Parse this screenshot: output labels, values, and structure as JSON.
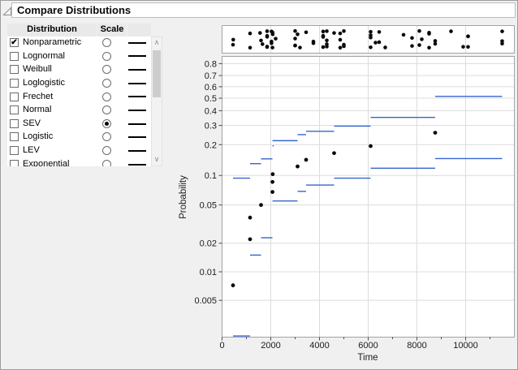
{
  "window": {
    "title": "Compare Distributions"
  },
  "distribution_table": {
    "columns": [
      "Distribution",
      "Scale",
      ""
    ],
    "rows": [
      {
        "label": "Nonparametric",
        "checked": true,
        "scale_selected": false
      },
      {
        "label": "Lognormal",
        "checked": false,
        "scale_selected": false
      },
      {
        "label": "Weibull",
        "checked": false,
        "scale_selected": false
      },
      {
        "label": "Loglogistic",
        "checked": false,
        "scale_selected": false
      },
      {
        "label": "Frechet",
        "checked": false,
        "scale_selected": false
      },
      {
        "label": "Normal",
        "checked": false,
        "scale_selected": false
      },
      {
        "label": "SEV",
        "checked": false,
        "scale_selected": true
      },
      {
        "label": "Logistic",
        "checked": false,
        "scale_selected": false
      },
      {
        "label": "LEV",
        "checked": false,
        "scale_selected": false
      },
      {
        "label": "Exponential",
        "checked": false,
        "scale_selected": false
      }
    ]
  },
  "chart_data": {
    "type": "scatter",
    "title": "",
    "xlabel": "Time",
    "ylabel": "Probability",
    "x_axis": {
      "min": 0,
      "max": 12000,
      "major_ticks": [
        0,
        2000,
        4000,
        6000,
        8000,
        10000
      ],
      "minor_ticks": [
        1000,
        3000,
        5000,
        7000,
        9000,
        11000
      ]
    },
    "y_axis": {
      "scale": "sev-probability",
      "ticks": [
        0.8,
        0.7,
        0.6,
        0.5,
        0.4,
        0.3,
        0.2,
        0.1,
        0.05,
        0.02,
        0.01,
        0.005
      ],
      "min": 0.002,
      "max": 0.86
    },
    "grid": true,
    "legend": "none",
    "colors": {
      "points": "#0a0a0a",
      "nonparametric_ci": "#3565cf"
    },
    "km_midpoints": [
      [
        450,
        0.0072
      ],
      [
        1150,
        0.022
      ],
      [
        1150,
        0.037
      ],
      [
        1600,
        0.05
      ],
      [
        2070,
        0.068
      ],
      [
        2070,
        0.086
      ],
      [
        2080,
        0.103
      ],
      [
        3100,
        0.123
      ],
      [
        3450,
        0.143
      ],
      [
        4600,
        0.166
      ],
      [
        6100,
        0.194
      ],
      [
        8750,
        0.258
      ]
    ],
    "ci_lower_steps": [
      [
        450,
        1150,
        0.0021
      ],
      [
        1150,
        1600,
        0.015
      ],
      [
        1600,
        2070,
        0.0228
      ],
      [
        2070,
        3100,
        0.055
      ],
      [
        3100,
        3450,
        0.069
      ],
      [
        3450,
        4600,
        0.08
      ],
      [
        4600,
        6100,
        0.094
      ],
      [
        6100,
        8750,
        0.118
      ],
      [
        8750,
        11500,
        0.147
      ]
    ],
    "ci_upper_steps": [
      [
        450,
        1150,
        0.094
      ],
      [
        1150,
        1600,
        0.131
      ],
      [
        1600,
        2070,
        0.146
      ],
      [
        2070,
        2080,
        0.195
      ],
      [
        2070,
        3100,
        0.218
      ],
      [
        3100,
        3450,
        0.248
      ],
      [
        3450,
        4600,
        0.266
      ],
      [
        4600,
        6100,
        0.296
      ],
      [
        6100,
        8750,
        0.352
      ],
      [
        8750,
        11500,
        0.515
      ]
    ],
    "event_times": [
      450,
      460,
      1150,
      1150,
      1560,
      1600,
      1660,
      1850,
      1850,
      1850,
      1850,
      1850,
      2030,
      2030,
      2030,
      2070,
      2070,
      2080,
      2200,
      3000,
      3000,
      3000,
      3000,
      3100,
      3200,
      3450,
      3750,
      3750,
      4150,
      4150,
      4150,
      4150,
      4300,
      4300,
      4300,
      4300,
      4600,
      4850,
      4850,
      4850,
      5000,
      5000,
      5000,
      6100,
      6100,
      6100,
      6100,
      6300,
      6450,
      6450,
      6700,
      7450,
      7800,
      7800,
      8100,
      8100,
      8200,
      8500,
      8500,
      8500,
      8750,
      8750,
      9400,
      9900,
      10100,
      10100,
      10100,
      11500,
      11500,
      11500
    ]
  }
}
